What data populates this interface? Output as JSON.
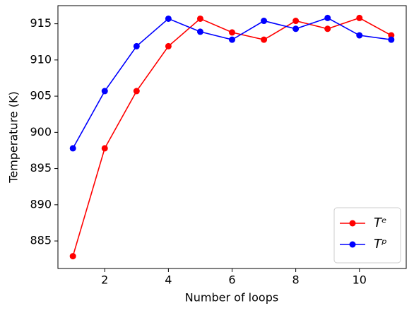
{
  "chart_data": {
    "type": "line",
    "x": [
      1,
      2,
      3,
      4,
      5,
      6,
      7,
      8,
      9,
      10,
      11
    ],
    "series": [
      {
        "name": "Tᵉ",
        "color": "#ff0000",
        "values": [
          882.9,
          897.8,
          905.7,
          911.9,
          915.7,
          913.8,
          912.8,
          915.4,
          914.3,
          915.8,
          913.4
        ]
      },
      {
        "name": "Tᵖ",
        "color": "#0000ff",
        "values": [
          897.8,
          905.7,
          911.9,
          915.7,
          913.9,
          912.8,
          915.4,
          914.3,
          915.8,
          913.4,
          912.8
        ]
      }
    ],
    "xlabel": "Number of loops",
    "ylabel": "Temperature (K)",
    "xlim": [
      0.53,
      11.47
    ],
    "ylim": [
      881.2,
      917.5
    ],
    "xticks": [
      2,
      4,
      6,
      8,
      10
    ],
    "yticks": [
      885,
      890,
      895,
      900,
      905,
      910,
      915
    ],
    "legend": "lower right"
  }
}
